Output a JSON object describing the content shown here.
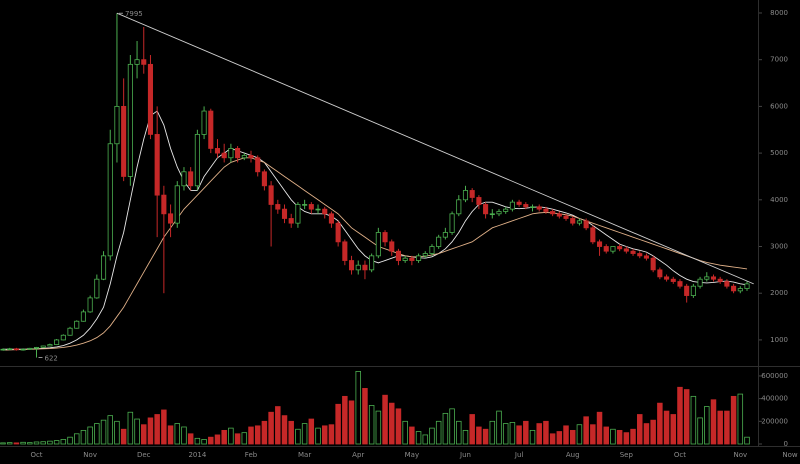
{
  "chart_data": {
    "type": "candlestick",
    "categories": [
      null,
      null,
      null,
      null,
      null,
      "Oct",
      null,
      null,
      null,
      null,
      null,
      null,
      null,
      "Nov",
      null,
      null,
      null,
      null,
      null,
      null,
      null,
      "Dec",
      null,
      null,
      null,
      null,
      null,
      null,
      null,
      "2014",
      null,
      null,
      null,
      null,
      null,
      null,
      null,
      "Feb",
      null,
      null,
      null,
      null,
      null,
      null,
      null,
      "Mar",
      null,
      null,
      null,
      null,
      null,
      null,
      null,
      "Apr",
      null,
      null,
      null,
      null,
      null,
      null,
      null,
      "May",
      null,
      null,
      null,
      null,
      null,
      null,
      null,
      "Jun",
      null,
      null,
      null,
      null,
      null,
      null,
      null,
      "Jul",
      null,
      null,
      null,
      null,
      null,
      null,
      null,
      "Aug",
      null,
      null,
      null,
      null,
      null,
      null,
      null,
      "Sep",
      null,
      null,
      null,
      null,
      null,
      null,
      null,
      "Oct",
      null,
      null,
      null,
      null,
      null,
      null,
      null,
      null,
      "Nov",
      null
    ],
    "now_label": "Now",
    "candles": {
      "open": [
        790,
        800,
        810,
        790,
        800,
        820,
        840,
        870,
        900,
        1000,
        1100,
        1250,
        1400,
        1600,
        1900,
        2300,
        2800,
        5200,
        6000,
        4500,
        6900,
        7000,
        6900,
        5400,
        4100,
        3700,
        3500,
        4300,
        4600,
        4300,
        5400,
        5900,
        5100,
        5000,
        4900,
        5100,
        4900,
        4950,
        4900,
        4600,
        4300,
        3900,
        3800,
        3600,
        3500,
        3900,
        3900,
        3800,
        3800,
        3700,
        3500,
        3100,
        2700,
        2500,
        2600,
        2500,
        2800,
        3300,
        3100,
        2900,
        2700,
        2750,
        2700,
        2800,
        2850,
        3000,
        3200,
        3300,
        3700,
        4000,
        4200,
        4050,
        3900,
        3700,
        3700,
        3750,
        3800,
        3950,
        3900,
        3850,
        3850,
        3800,
        3750,
        3700,
        3650,
        3600,
        3500,
        3550,
        3400,
        3100,
        3000,
        2900,
        3000,
        2950,
        2900,
        2850,
        2800,
        2750,
        2500,
        2350,
        2300,
        2250,
        2150,
        1950,
        2150,
        2300,
        2350,
        2300,
        2250,
        2150,
        2050,
        2100
      ],
      "high": [
        820,
        830,
        830,
        820,
        830,
        850,
        880,
        920,
        1020,
        1120,
        1280,
        1420,
        1650,
        1950,
        2400,
        2900,
        5500,
        7995,
        6600,
        7100,
        7400,
        7700,
        7100,
        6000,
        4300,
        3900,
        4400,
        4700,
        4700,
        5500,
        6000,
        5950,
        5300,
        5200,
        5200,
        5150,
        5000,
        5050,
        4950,
        4650,
        4400,
        4000,
        3900,
        3700,
        3950,
        4000,
        3950,
        3900,
        3850,
        3750,
        3550,
        3150,
        2800,
        2700,
        2700,
        2850,
        3400,
        3350,
        3150,
        2950,
        2800,
        2800,
        2850,
        2900,
        3050,
        3250,
        3400,
        3750,
        4100,
        4300,
        4250,
        4100,
        3950,
        3800,
        3800,
        3850,
        4000,
        4000,
        3950,
        3900,
        3900,
        3850,
        3800,
        3750,
        3700,
        3650,
        3600,
        3600,
        3450,
        3150,
        3050,
        3000,
        3050,
        3000,
        2950,
        2900,
        2850,
        2800,
        2550,
        2400,
        2350,
        2300,
        2200,
        2200,
        2350,
        2450,
        2400,
        2350,
        2300,
        2200,
        2150,
        2250
      ],
      "low": [
        770,
        780,
        770,
        770,
        790,
        622,
        830,
        860,
        890,
        990,
        1090,
        1240,
        1390,
        1580,
        1880,
        2280,
        2700,
        4800,
        4400,
        4300,
        6600,
        6700,
        5300,
        3200,
        2000,
        3200,
        3400,
        4200,
        4200,
        4200,
        5300,
        5000,
        4900,
        4800,
        4800,
        4800,
        4850,
        4800,
        4500,
        4200,
        3000,
        3700,
        3500,
        3400,
        3400,
        3800,
        3700,
        3700,
        3600,
        3400,
        3000,
        2600,
        2400,
        2400,
        2300,
        2450,
        2750,
        3000,
        2800,
        2600,
        2650,
        2600,
        2650,
        2750,
        2800,
        2950,
        3150,
        3250,
        3650,
        3950,
        3950,
        3800,
        3600,
        3600,
        3650,
        3700,
        3750,
        3850,
        3800,
        3750,
        3750,
        3700,
        3650,
        3600,
        3550,
        3450,
        3450,
        3350,
        3050,
        2800,
        2850,
        2850,
        2900,
        2850,
        2800,
        2750,
        2700,
        2450,
        2300,
        2250,
        2200,
        2100,
        1800,
        1900,
        2100,
        2250,
        2250,
        2200,
        2100,
        2000,
        2000,
        2050
      ],
      "close": [
        800,
        810,
        790,
        800,
        820,
        840,
        870,
        900,
        1000,
        1100,
        1250,
        1400,
        1600,
        1900,
        2300,
        2800,
        5200,
        6000,
        4500,
        6900,
        7000,
        6900,
        5400,
        4100,
        3700,
        3500,
        4300,
        4600,
        4300,
        5400,
        5900,
        5100,
        5000,
        4900,
        5100,
        4900,
        4950,
        4900,
        4600,
        4300,
        3900,
        3800,
        3600,
        3500,
        3900,
        3900,
        3800,
        3800,
        3700,
        3500,
        3100,
        2700,
        2500,
        2600,
        2500,
        2800,
        3300,
        3100,
        2900,
        2700,
        2750,
        2700,
        2800,
        2850,
        3000,
        3200,
        3300,
        3700,
        4000,
        4200,
        4050,
        3900,
        3700,
        3700,
        3750,
        3800,
        3950,
        3900,
        3850,
        3850,
        3800,
        3750,
        3700,
        3650,
        3600,
        3500,
        3550,
        3400,
        3100,
        3000,
        2900,
        3000,
        2950,
        2900,
        2850,
        2800,
        2750,
        2500,
        2350,
        2300,
        2250,
        2150,
        1950,
        2150,
        2300,
        2350,
        2300,
        2250,
        2150,
        2050,
        2100,
        2200
      ]
    },
    "volume": [
      10000,
      12000,
      10000,
      15000,
      12000,
      18000,
      20000,
      25000,
      30000,
      40000,
      60000,
      90000,
      120000,
      150000,
      180000,
      210000,
      250000,
      200000,
      130000,
      280000,
      220000,
      170000,
      230000,
      260000,
      300000,
      160000,
      180000,
      150000,
      90000,
      50000,
      40000,
      60000,
      80000,
      120000,
      140000,
      90000,
      100000,
      150000,
      160000,
      200000,
      280000,
      330000,
      250000,
      200000,
      130000,
      180000,
      220000,
      140000,
      160000,
      170000,
      350000,
      420000,
      380000,
      640000,
      490000,
      340000,
      290000,
      430000,
      360000,
      310000,
      200000,
      150000,
      110000,
      80000,
      140000,
      200000,
      270000,
      310000,
      200000,
      120000,
      260000,
      150000,
      130000,
      200000,
      290000,
      180000,
      190000,
      160000,
      200000,
      120000,
      180000,
      200000,
      90000,
      110000,
      160000,
      120000,
      170000,
      240000,
      170000,
      280000,
      150000,
      130000,
      120000,
      100000,
      130000,
      260000,
      180000,
      210000,
      360000,
      290000,
      260000,
      500000,
      480000,
      420000,
      230000,
      330000,
      390000,
      290000,
      290000,
      420000,
      440000,
      60000
    ],
    "moving_averages": [
      {
        "color": "#e8e8e8",
        "values": [
          800,
          800,
          800,
          800,
          805,
          810,
          820,
          830,
          850,
          880,
          930,
          1000,
          1100,
          1250,
          1450,
          1700,
          2200,
          2800,
          3300,
          4000,
          4700,
          5300,
          5800,
          5900,
          5600,
          5100,
          4700,
          4400,
          4200,
          4200,
          4500,
          4700,
          4900,
          5000,
          5100,
          5050,
          5000,
          4950,
          4900,
          4800,
          4600,
          4400,
          4200,
          4000,
          3850,
          3750,
          3700,
          3700,
          3700,
          3650,
          3550,
          3350,
          3150,
          2950,
          2800,
          2700,
          2650,
          2700,
          2750,
          2800,
          2800,
          2780,
          2760,
          2750,
          2780,
          2850,
          2950,
          3100,
          3300,
          3550,
          3750,
          3900,
          3950,
          3950,
          3900,
          3850,
          3820,
          3810,
          3820,
          3840,
          3850,
          3830,
          3800,
          3760,
          3720,
          3670,
          3600,
          3550,
          3450,
          3350,
          3250,
          3150,
          3050,
          3000,
          2950,
          2920,
          2880,
          2800,
          2700,
          2600,
          2480,
          2380,
          2300,
          2250,
          2230,
          2220,
          2230,
          2250,
          2260,
          2240,
          2200,
          2180
        ]
      },
      {
        "color": "#e0b088",
        "values": [
          780,
          785,
          790,
          795,
          800,
          805,
          810,
          815,
          825,
          840,
          860,
          890,
          930,
          980,
          1050,
          1150,
          1300,
          1500,
          1700,
          1950,
          2200,
          2450,
          2700,
          2950,
          3200,
          3400,
          3600,
          3800,
          3950,
          4100,
          4250,
          4400,
          4550,
          4700,
          4800,
          4850,
          4900,
          4900,
          4850,
          4800,
          4700,
          4600,
          4500,
          4400,
          4300,
          4200,
          4100,
          4000,
          3900,
          3800,
          3700,
          3550,
          3400,
          3300,
          3200,
          3100,
          3000,
          2950,
          2900,
          2850,
          2800,
          2780,
          2780,
          2790,
          2820,
          2850,
          2900,
          2950,
          3000,
          3050,
          3100,
          3200,
          3300,
          3400,
          3450,
          3500,
          3550,
          3600,
          3650,
          3700,
          3720,
          3730,
          3720,
          3700,
          3680,
          3650,
          3600,
          3550,
          3500,
          3450,
          3400,
          3350,
          3300,
          3250,
          3200,
          3150,
          3100,
          3050,
          3000,
          2950,
          2900,
          2850,
          2800,
          2750,
          2700,
          2660,
          2630,
          2600,
          2580,
          2560,
          2540,
          2520
        ]
      }
    ],
    "trendline": {
      "color": "#cfcfcf",
      "values": [
        7995,
        2200
      ]
    },
    "up_color": "#4caf50",
    "down_color": "#c62828",
    "ylim": [
      463,
      8278
    ],
    "yticks": [
      1000,
      2000,
      3000,
      4000,
      5000,
      6000,
      7000,
      8000
    ],
    "volume_ylim": [
      0,
      670000
    ],
    "volume_yticks": [
      0,
      200000,
      400000,
      600000
    ]
  }
}
